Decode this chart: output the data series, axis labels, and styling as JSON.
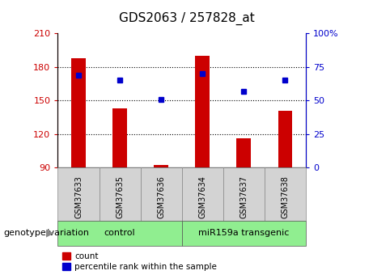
{
  "title": "GDS2063 / 257828_at",
  "categories": [
    "GSM37633",
    "GSM37635",
    "GSM37636",
    "GSM37634",
    "GSM37637",
    "GSM37638"
  ],
  "count_values": [
    188,
    143,
    92,
    190,
    116,
    141
  ],
  "percentile_values": [
    69,
    65,
    51,
    70,
    57,
    65
  ],
  "ylim_left": [
    90,
    210
  ],
  "ylim_right": [
    0,
    100
  ],
  "yticks_left": [
    90,
    120,
    150,
    180,
    210
  ],
  "yticks_right": [
    0,
    25,
    50,
    75,
    100
  ],
  "ytick_labels_right": [
    "0",
    "25",
    "50",
    "75",
    "100%"
  ],
  "bar_color": "#cc0000",
  "dot_color": "#0000cc",
  "bar_bottom": 90,
  "group_info": [
    {
      "label": "control",
      "start": 0,
      "end": 3,
      "color": "#90ee90"
    },
    {
      "label": "miR159a transgenic",
      "start": 3,
      "end": 6,
      "color": "#90ee90"
    }
  ],
  "xlabel_text": "genotype/variation",
  "legend_items": [
    "count",
    "percentile rank within the sample"
  ],
  "grid_yticks": [
    120,
    150,
    180
  ],
  "bar_width": 0.35
}
